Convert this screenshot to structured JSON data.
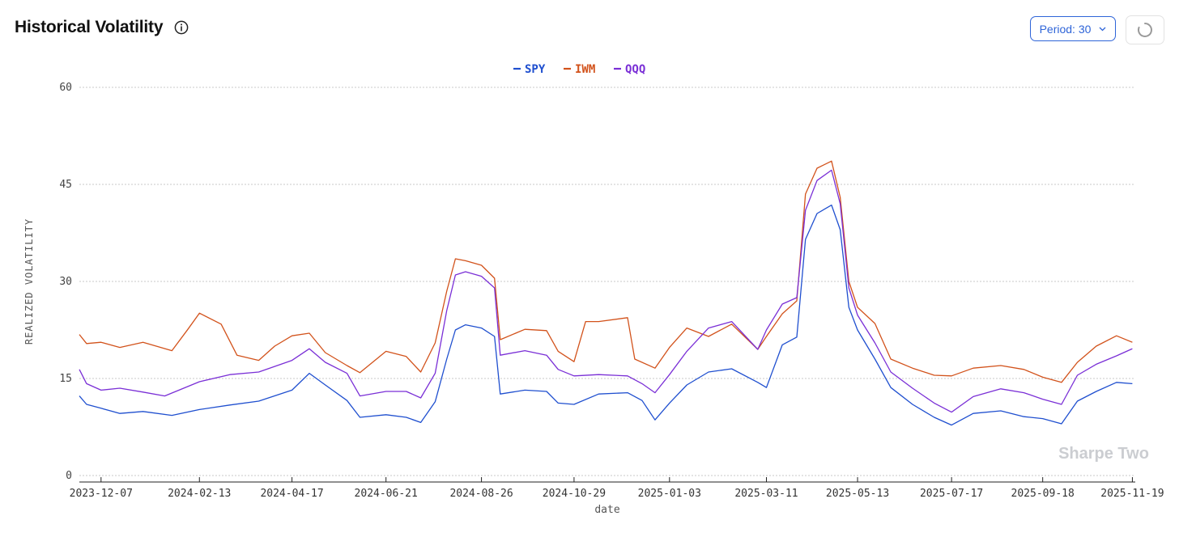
{
  "header": {
    "title": "Historical Volatility",
    "period_label": "Period: 30"
  },
  "watermark": "Sharpe Two",
  "icons": {
    "info": "info-icon",
    "period_dropdown": "chevron-down-icon",
    "refresh": "loading-spinner-icon"
  },
  "colors": {
    "SPY": "#1f4fcf",
    "IWM": "#d2521b",
    "QQQ": "#7a2fd6",
    "accent": "#2e64d8",
    "grid": "#c8c8c8"
  },
  "chart_data": {
    "type": "line",
    "xlabel": "date",
    "ylabel": "REALIZED VOLATILITY",
    "ylim": [
      0,
      60
    ],
    "yticks": [
      0,
      15,
      30,
      45,
      60
    ],
    "xlim": [
      "2023-11-22",
      "2025-11-21"
    ],
    "xticks": [
      "2023-12-07",
      "2024-02-13",
      "2024-04-17",
      "2024-06-21",
      "2024-08-26",
      "2024-10-29",
      "2025-01-03",
      "2025-03-11",
      "2025-05-13",
      "2025-07-17",
      "2025-09-18",
      "2025-11-19"
    ],
    "grid": "horizontal dotted",
    "legend": "top-center",
    "series": [
      {
        "name": "SPY",
        "color": "#1f4fcf",
        "points": [
          [
            "2023-11-22",
            12.3
          ],
          [
            "2023-11-27",
            11.0
          ],
          [
            "2023-12-07",
            10.4
          ],
          [
            "2023-12-20",
            9.6
          ],
          [
            "2024-01-05",
            9.9
          ],
          [
            "2024-01-25",
            9.3
          ],
          [
            "2024-02-13",
            10.2
          ],
          [
            "2024-03-05",
            10.9
          ],
          [
            "2024-03-25",
            11.5
          ],
          [
            "2024-04-17",
            13.2
          ],
          [
            "2024-04-29",
            15.8
          ],
          [
            "2024-05-10",
            14.0
          ],
          [
            "2024-05-25",
            11.6
          ],
          [
            "2024-06-03",
            9.0
          ],
          [
            "2024-06-21",
            9.4
          ],
          [
            "2024-07-05",
            9.0
          ],
          [
            "2024-07-15",
            8.2
          ],
          [
            "2024-07-25",
            11.4
          ],
          [
            "2024-08-02",
            18.0
          ],
          [
            "2024-08-08",
            22.5
          ],
          [
            "2024-08-15",
            23.3
          ],
          [
            "2024-08-26",
            22.8
          ],
          [
            "2024-09-04",
            21.5
          ],
          [
            "2024-09-08",
            12.6
          ],
          [
            "2024-09-25",
            13.2
          ],
          [
            "2024-10-10",
            13.0
          ],
          [
            "2024-10-18",
            11.2
          ],
          [
            "2024-10-29",
            11.0
          ],
          [
            "2024-11-15",
            12.6
          ],
          [
            "2024-12-05",
            12.8
          ],
          [
            "2024-12-15",
            11.6
          ],
          [
            "2024-12-24",
            8.6
          ],
          [
            "2025-01-03",
            11.2
          ],
          [
            "2025-01-15",
            14.0
          ],
          [
            "2025-01-30",
            16.0
          ],
          [
            "2025-02-15",
            16.5
          ],
          [
            "2025-03-05",
            14.4
          ],
          [
            "2025-03-11",
            13.6
          ],
          [
            "2025-03-22",
            20.2
          ],
          [
            "2025-04-01",
            21.4
          ],
          [
            "2025-04-07",
            36.5
          ],
          [
            "2025-04-15",
            40.5
          ],
          [
            "2025-04-25",
            41.8
          ],
          [
            "2025-05-01",
            38.0
          ],
          [
            "2025-05-07",
            26.0
          ],
          [
            "2025-05-13",
            22.5
          ],
          [
            "2025-05-25",
            18.0
          ],
          [
            "2025-06-05",
            13.6
          ],
          [
            "2025-06-20",
            11.0
          ],
          [
            "2025-07-05",
            9.0
          ],
          [
            "2025-07-17",
            7.8
          ],
          [
            "2025-08-01",
            9.6
          ],
          [
            "2025-08-20",
            10.0
          ],
          [
            "2025-09-05",
            9.1
          ],
          [
            "2025-09-18",
            8.8
          ],
          [
            "2025-10-01",
            8.0
          ],
          [
            "2025-10-12",
            11.5
          ],
          [
            "2025-10-25",
            13.0
          ],
          [
            "2025-11-08",
            14.4
          ],
          [
            "2025-11-19",
            14.2
          ]
        ]
      },
      {
        "name": "IWM",
        "color": "#d2521b",
        "points": [
          [
            "2023-11-22",
            21.8
          ],
          [
            "2023-11-27",
            20.4
          ],
          [
            "2023-12-07",
            20.6
          ],
          [
            "2023-12-20",
            19.8
          ],
          [
            "2024-01-05",
            20.6
          ],
          [
            "2024-01-25",
            19.3
          ],
          [
            "2024-02-05",
            22.6
          ],
          [
            "2024-02-13",
            25.1
          ],
          [
            "2024-02-28",
            23.4
          ],
          [
            "2024-03-10",
            18.6
          ],
          [
            "2024-03-25",
            17.8
          ],
          [
            "2024-04-05",
            20.0
          ],
          [
            "2024-04-17",
            21.6
          ],
          [
            "2024-04-29",
            22.0
          ],
          [
            "2024-05-10",
            19.0
          ],
          [
            "2024-05-25",
            17.0
          ],
          [
            "2024-06-03",
            15.9
          ],
          [
            "2024-06-21",
            19.2
          ],
          [
            "2024-07-05",
            18.4
          ],
          [
            "2024-07-15",
            16.0
          ],
          [
            "2024-07-25",
            20.5
          ],
          [
            "2024-08-02",
            28.5
          ],
          [
            "2024-08-08",
            33.5
          ],
          [
            "2024-08-15",
            33.2
          ],
          [
            "2024-08-26",
            32.5
          ],
          [
            "2024-09-04",
            30.5
          ],
          [
            "2024-09-08",
            21.0
          ],
          [
            "2024-09-25",
            22.6
          ],
          [
            "2024-10-10",
            22.4
          ],
          [
            "2024-10-18",
            19.2
          ],
          [
            "2024-10-29",
            17.6
          ],
          [
            "2024-11-06",
            23.8
          ],
          [
            "2024-11-15",
            23.8
          ],
          [
            "2024-12-05",
            24.4
          ],
          [
            "2024-12-10",
            18.0
          ],
          [
            "2024-12-24",
            16.6
          ],
          [
            "2025-01-03",
            19.8
          ],
          [
            "2025-01-15",
            22.8
          ],
          [
            "2025-01-30",
            21.5
          ],
          [
            "2025-02-15",
            23.4
          ],
          [
            "2025-03-05",
            19.5
          ],
          [
            "2025-03-11",
            21.5
          ],
          [
            "2025-03-22",
            25.0
          ],
          [
            "2025-04-01",
            27.0
          ],
          [
            "2025-04-07",
            43.5
          ],
          [
            "2025-04-15",
            47.5
          ],
          [
            "2025-04-25",
            48.6
          ],
          [
            "2025-05-01",
            43.0
          ],
          [
            "2025-05-07",
            30.0
          ],
          [
            "2025-05-13",
            26.0
          ],
          [
            "2025-05-25",
            23.5
          ],
          [
            "2025-06-05",
            18.0
          ],
          [
            "2025-06-20",
            16.6
          ],
          [
            "2025-07-05",
            15.5
          ],
          [
            "2025-07-17",
            15.4
          ],
          [
            "2025-08-01",
            16.6
          ],
          [
            "2025-08-20",
            17.0
          ],
          [
            "2025-09-05",
            16.4
          ],
          [
            "2025-09-18",
            15.2
          ],
          [
            "2025-10-01",
            14.4
          ],
          [
            "2025-10-12",
            17.5
          ],
          [
            "2025-10-25",
            20.0
          ],
          [
            "2025-11-08",
            21.6
          ],
          [
            "2025-11-19",
            20.6
          ]
        ]
      },
      {
        "name": "QQQ",
        "color": "#7a2fd6",
        "points": [
          [
            "2023-11-22",
            16.4
          ],
          [
            "2023-11-27",
            14.2
          ],
          [
            "2023-12-07",
            13.2
          ],
          [
            "2023-12-20",
            13.5
          ],
          [
            "2024-01-05",
            12.9
          ],
          [
            "2024-01-20",
            12.3
          ],
          [
            "2024-02-13",
            14.5
          ],
          [
            "2024-03-05",
            15.6
          ],
          [
            "2024-03-25",
            16.0
          ],
          [
            "2024-04-17",
            17.8
          ],
          [
            "2024-04-29",
            19.6
          ],
          [
            "2024-05-10",
            17.5
          ],
          [
            "2024-05-25",
            15.8
          ],
          [
            "2024-06-03",
            12.3
          ],
          [
            "2024-06-21",
            13.0
          ],
          [
            "2024-07-05",
            13.0
          ],
          [
            "2024-07-15",
            12.0
          ],
          [
            "2024-07-25",
            15.8
          ],
          [
            "2024-08-02",
            25.5
          ],
          [
            "2024-08-08",
            31.0
          ],
          [
            "2024-08-15",
            31.5
          ],
          [
            "2024-08-26",
            30.8
          ],
          [
            "2024-09-04",
            29.0
          ],
          [
            "2024-09-08",
            18.6
          ],
          [
            "2024-09-25",
            19.3
          ],
          [
            "2024-10-10",
            18.6
          ],
          [
            "2024-10-18",
            16.4
          ],
          [
            "2024-10-29",
            15.4
          ],
          [
            "2024-11-15",
            15.6
          ],
          [
            "2024-12-05",
            15.4
          ],
          [
            "2024-12-15",
            14.2
          ],
          [
            "2024-12-24",
            12.8
          ],
          [
            "2025-01-03",
            15.6
          ],
          [
            "2025-01-15",
            19.2
          ],
          [
            "2025-01-30",
            22.8
          ],
          [
            "2025-02-15",
            23.8
          ],
          [
            "2025-03-05",
            19.5
          ],
          [
            "2025-03-11",
            22.5
          ],
          [
            "2025-03-22",
            26.5
          ],
          [
            "2025-04-01",
            27.5
          ],
          [
            "2025-04-07",
            41.0
          ],
          [
            "2025-04-15",
            45.6
          ],
          [
            "2025-04-25",
            47.2
          ],
          [
            "2025-05-01",
            42.0
          ],
          [
            "2025-05-07",
            29.0
          ],
          [
            "2025-05-13",
            24.8
          ],
          [
            "2025-05-25",
            20.5
          ],
          [
            "2025-06-05",
            16.0
          ],
          [
            "2025-06-20",
            13.5
          ],
          [
            "2025-07-05",
            11.2
          ],
          [
            "2025-07-17",
            9.8
          ],
          [
            "2025-08-01",
            12.2
          ],
          [
            "2025-08-20",
            13.4
          ],
          [
            "2025-09-05",
            12.8
          ],
          [
            "2025-09-18",
            11.8
          ],
          [
            "2025-10-01",
            11.0
          ],
          [
            "2025-10-12",
            15.5
          ],
          [
            "2025-10-25",
            17.2
          ],
          [
            "2025-11-08",
            18.5
          ],
          [
            "2025-11-19",
            19.6
          ]
        ]
      }
    ]
  }
}
